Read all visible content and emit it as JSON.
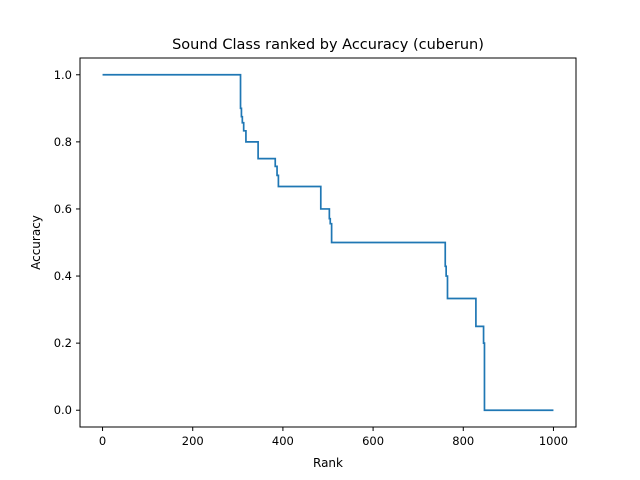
{
  "chart_data": {
    "type": "line",
    "title": "Sound Class ranked by Accuracy (cuberun)",
    "xlabel": "Rank",
    "ylabel": "Accuracy",
    "xlim": [
      -50,
      1050
    ],
    "ylim": [
      -0.05,
      1.05
    ],
    "xticks": [
      0,
      200,
      400,
      600,
      800,
      1000
    ],
    "xtick_labels": [
      "0",
      "200",
      "400",
      "600",
      "800",
      "1000"
    ],
    "yticks": [
      0.0,
      0.2,
      0.4,
      0.6,
      0.8,
      1.0
    ],
    "ytick_labels": [
      "0.0",
      "0.2",
      "0.4",
      "0.6",
      "0.8",
      "1.0"
    ],
    "grid": false,
    "colors": {
      "series": "#1f77b4"
    },
    "series": [
      {
        "x": [
          0,
          306,
          306,
          308,
          308,
          310,
          310,
          313,
          313,
          318,
          318,
          323,
          323,
          345,
          345,
          383,
          383,
          387,
          387,
          390,
          390,
          484,
          484,
          503,
          503,
          505,
          505,
          508,
          508,
          760,
          760,
          762,
          762,
          765,
          765,
          828,
          828,
          845,
          845,
          847,
          847,
          1000
        ],
        "y": [
          1.0,
          1.0,
          0.9,
          0.9,
          0.875,
          0.875,
          0.857,
          0.857,
          0.833,
          0.833,
          0.8,
          0.8,
          0.8,
          0.8,
          0.75,
          0.75,
          0.727,
          0.727,
          0.7,
          0.7,
          0.667,
          0.667,
          0.6,
          0.6,
          0.571,
          0.571,
          0.556,
          0.556,
          0.5,
          0.5,
          0.429,
          0.429,
          0.4,
          0.4,
          0.333,
          0.333,
          0.25,
          0.25,
          0.2,
          0.2,
          0.0,
          0.0
        ]
      }
    ]
  }
}
